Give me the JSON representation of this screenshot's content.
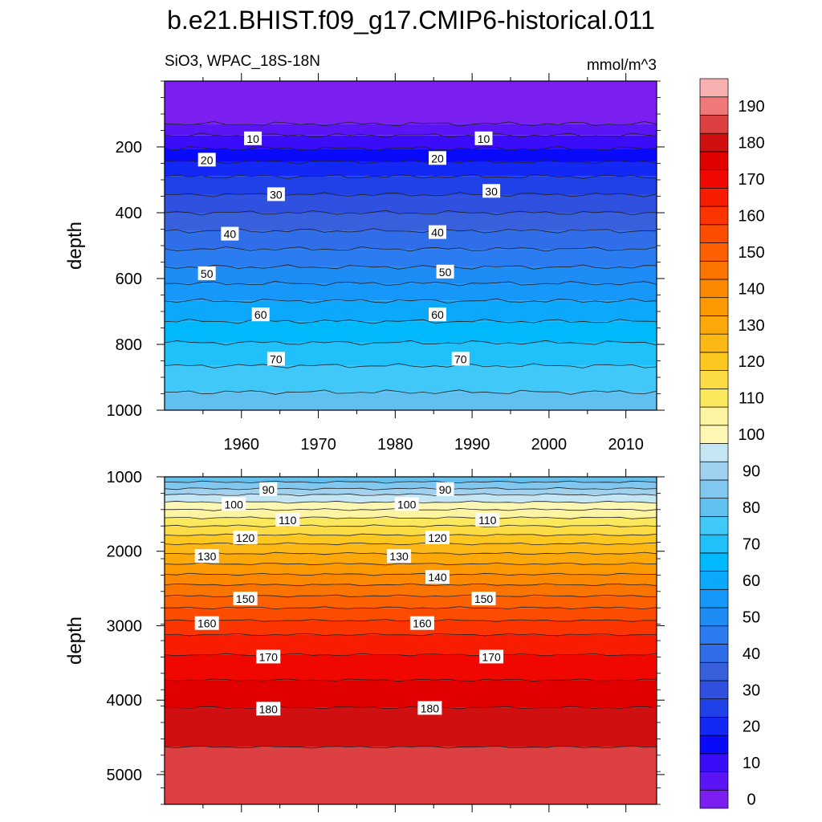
{
  "chart_data": {
    "type": "heatmap",
    "title": "b.e21.BHIST.f09_g17.CMIP6-historical.011",
    "variable_label": "SiO3, WPAC_18S-18N",
    "units_label": "mmol/m^3",
    "colorbar": {
      "tick_labels": [
        "0",
        "10",
        "20",
        "30",
        "40",
        "50",
        "60",
        "70",
        "80",
        "90",
        "100",
        "110",
        "120",
        "130",
        "140",
        "150",
        "160",
        "170",
        "180",
        "190"
      ],
      "levels": [
        0,
        5,
        10,
        15,
        20,
        25,
        30,
        35,
        40,
        45,
        50,
        55,
        60,
        65,
        70,
        75,
        80,
        85,
        90,
        95,
        100,
        105,
        110,
        115,
        120,
        125,
        130,
        135,
        140,
        145,
        150,
        155,
        160,
        165,
        170,
        175,
        180,
        185,
        190,
        195
      ],
      "colors": [
        "#7a1ff0",
        "#5a14f5",
        "#3a0cfa",
        "#0a0afa",
        "#1428f5",
        "#2040e8",
        "#3050e0",
        "#3860dc",
        "#2f6ee8",
        "#2a7cf0",
        "#1e8cf5",
        "#1598fa",
        "#0ca8fc",
        "#00b8fc",
        "#20c0fa",
        "#40c8f8",
        "#60c0f0",
        "#80c8f0",
        "#a0d2f0",
        "#c4e6f4",
        "#fcf8b4",
        "#fcf4a0",
        "#fce85c",
        "#fcdc44",
        "#fcc820",
        "#fcb814",
        "#fca808",
        "#fc9800",
        "#fc8800",
        "#fc7400",
        "#fc6000",
        "#fc4c00",
        "#fc3400",
        "#f81c00",
        "#f00800",
        "#e00000",
        "#d01010",
        "#dc4040",
        "#f07878",
        "#f8b0b0"
      ]
    },
    "panels": [
      {
        "ylabel": "depth",
        "y_range": [
          1000,
          0
        ],
        "y_tick_labels": [
          "200",
          "400",
          "600",
          "800",
          "1000"
        ],
        "x_range": [
          1950,
          2014
        ],
        "x_tick_labels": [
          "1960",
          "1970",
          "1980",
          "1990",
          "2000",
          "2010"
        ],
        "contour_depths": [
          {
            "value": 0,
            "depth": 0
          },
          {
            "value": 5,
            "depth": 130
          },
          {
            "value": 10,
            "depth": 165
          },
          {
            "value": 15,
            "depth": 205
          },
          {
            "value": 20,
            "depth": 245
          },
          {
            "value": 25,
            "depth": 290
          },
          {
            "value": 30,
            "depth": 345
          },
          {
            "value": 35,
            "depth": 400
          },
          {
            "value": 40,
            "depth": 455
          },
          {
            "value": 45,
            "depth": 510
          },
          {
            "value": 50,
            "depth": 565
          },
          {
            "value": 55,
            "depth": 615
          },
          {
            "value": 60,
            "depth": 668
          },
          {
            "value": 65,
            "depth": 730
          },
          {
            "value": 70,
            "depth": 795
          },
          {
            "value": 75,
            "depth": 865
          },
          {
            "value": 80,
            "depth": 945
          }
        ],
        "contour_labels": [
          {
            "text": "10",
            "year": 1961.5,
            "depth": 175
          },
          {
            "text": "10",
            "year": 1991.5,
            "depth": 175
          },
          {
            "text": "20",
            "year": 1955.5,
            "depth": 240
          },
          {
            "text": "20",
            "year": 1985.5,
            "depth": 235
          },
          {
            "text": "30",
            "year": 1964.5,
            "depth": 345
          },
          {
            "text": "30",
            "year": 1992.5,
            "depth": 335
          },
          {
            "text": "40",
            "year": 1958.5,
            "depth": 465
          },
          {
            "text": "40",
            "year": 1985.5,
            "depth": 460
          },
          {
            "text": "50",
            "year": 1955.5,
            "depth": 585
          },
          {
            "text": "50",
            "year": 1986.5,
            "depth": 580
          },
          {
            "text": "60",
            "year": 1962.5,
            "depth": 710
          },
          {
            "text": "60",
            "year": 1985.5,
            "depth": 710
          },
          {
            "text": "70",
            "year": 1964.5,
            "depth": 845
          },
          {
            "text": "70",
            "year": 1988.5,
            "depth": 845
          }
        ]
      },
      {
        "ylabel": "depth",
        "y_range": [
          5400,
          1000
        ],
        "y_tick_labels": [
          "1000",
          "2000",
          "3000",
          "4000",
          "5000"
        ],
        "x_range": [
          1950,
          2014
        ],
        "contour_depths": [
          {
            "value": 80,
            "depth": 1000
          },
          {
            "value": 85,
            "depth": 1070
          },
          {
            "value": 90,
            "depth": 1160
          },
          {
            "value": 95,
            "depth": 1240
          },
          {
            "value": 100,
            "depth": 1340
          },
          {
            "value": 105,
            "depth": 1440
          },
          {
            "value": 110,
            "depth": 1550
          },
          {
            "value": 115,
            "depth": 1660
          },
          {
            "value": 120,
            "depth": 1780
          },
          {
            "value": 125,
            "depth": 1900
          },
          {
            "value": 130,
            "depth": 2030
          },
          {
            "value": 135,
            "depth": 2170
          },
          {
            "value": 140,
            "depth": 2310
          },
          {
            "value": 145,
            "depth": 2450
          },
          {
            "value": 150,
            "depth": 2600
          },
          {
            "value": 155,
            "depth": 2760
          },
          {
            "value": 160,
            "depth": 2930
          },
          {
            "value": 165,
            "depth": 3120
          },
          {
            "value": 170,
            "depth": 3390
          },
          {
            "value": 175,
            "depth": 3730
          },
          {
            "value": 180,
            "depth": 4100
          },
          {
            "value": 185,
            "depth": 4630
          }
        ],
        "contour_labels": [
          {
            "text": "90",
            "year": 1963.5,
            "depth": 1170
          },
          {
            "text": "90",
            "year": 1986.5,
            "depth": 1170
          },
          {
            "text": "100",
            "year": 1959,
            "depth": 1370
          },
          {
            "text": "100",
            "year": 1981.5,
            "depth": 1370
          },
          {
            "text": "110",
            "year": 1966,
            "depth": 1580
          },
          {
            "text": "110",
            "year": 1992,
            "depth": 1580
          },
          {
            "text": "120",
            "year": 1960.5,
            "depth": 1820
          },
          {
            "text": "120",
            "year": 1985.5,
            "depth": 1820
          },
          {
            "text": "130",
            "year": 1955.5,
            "depth": 2070
          },
          {
            "text": "130",
            "year": 1980.5,
            "depth": 2070
          },
          {
            "text": "140",
            "year": 1985.5,
            "depth": 2350
          },
          {
            "text": "150",
            "year": 1960.5,
            "depth": 2640
          },
          {
            "text": "150",
            "year": 1991.5,
            "depth": 2640
          },
          {
            "text": "160",
            "year": 1955.5,
            "depth": 2970
          },
          {
            "text": "160",
            "year": 1983.5,
            "depth": 2970
          },
          {
            "text": "170",
            "year": 1963.5,
            "depth": 3420
          },
          {
            "text": "170",
            "year": 1992.5,
            "depth": 3420
          },
          {
            "text": "180",
            "year": 1963.5,
            "depth": 4120
          },
          {
            "text": "180",
            "year": 1984.5,
            "depth": 4110
          }
        ]
      }
    ]
  }
}
